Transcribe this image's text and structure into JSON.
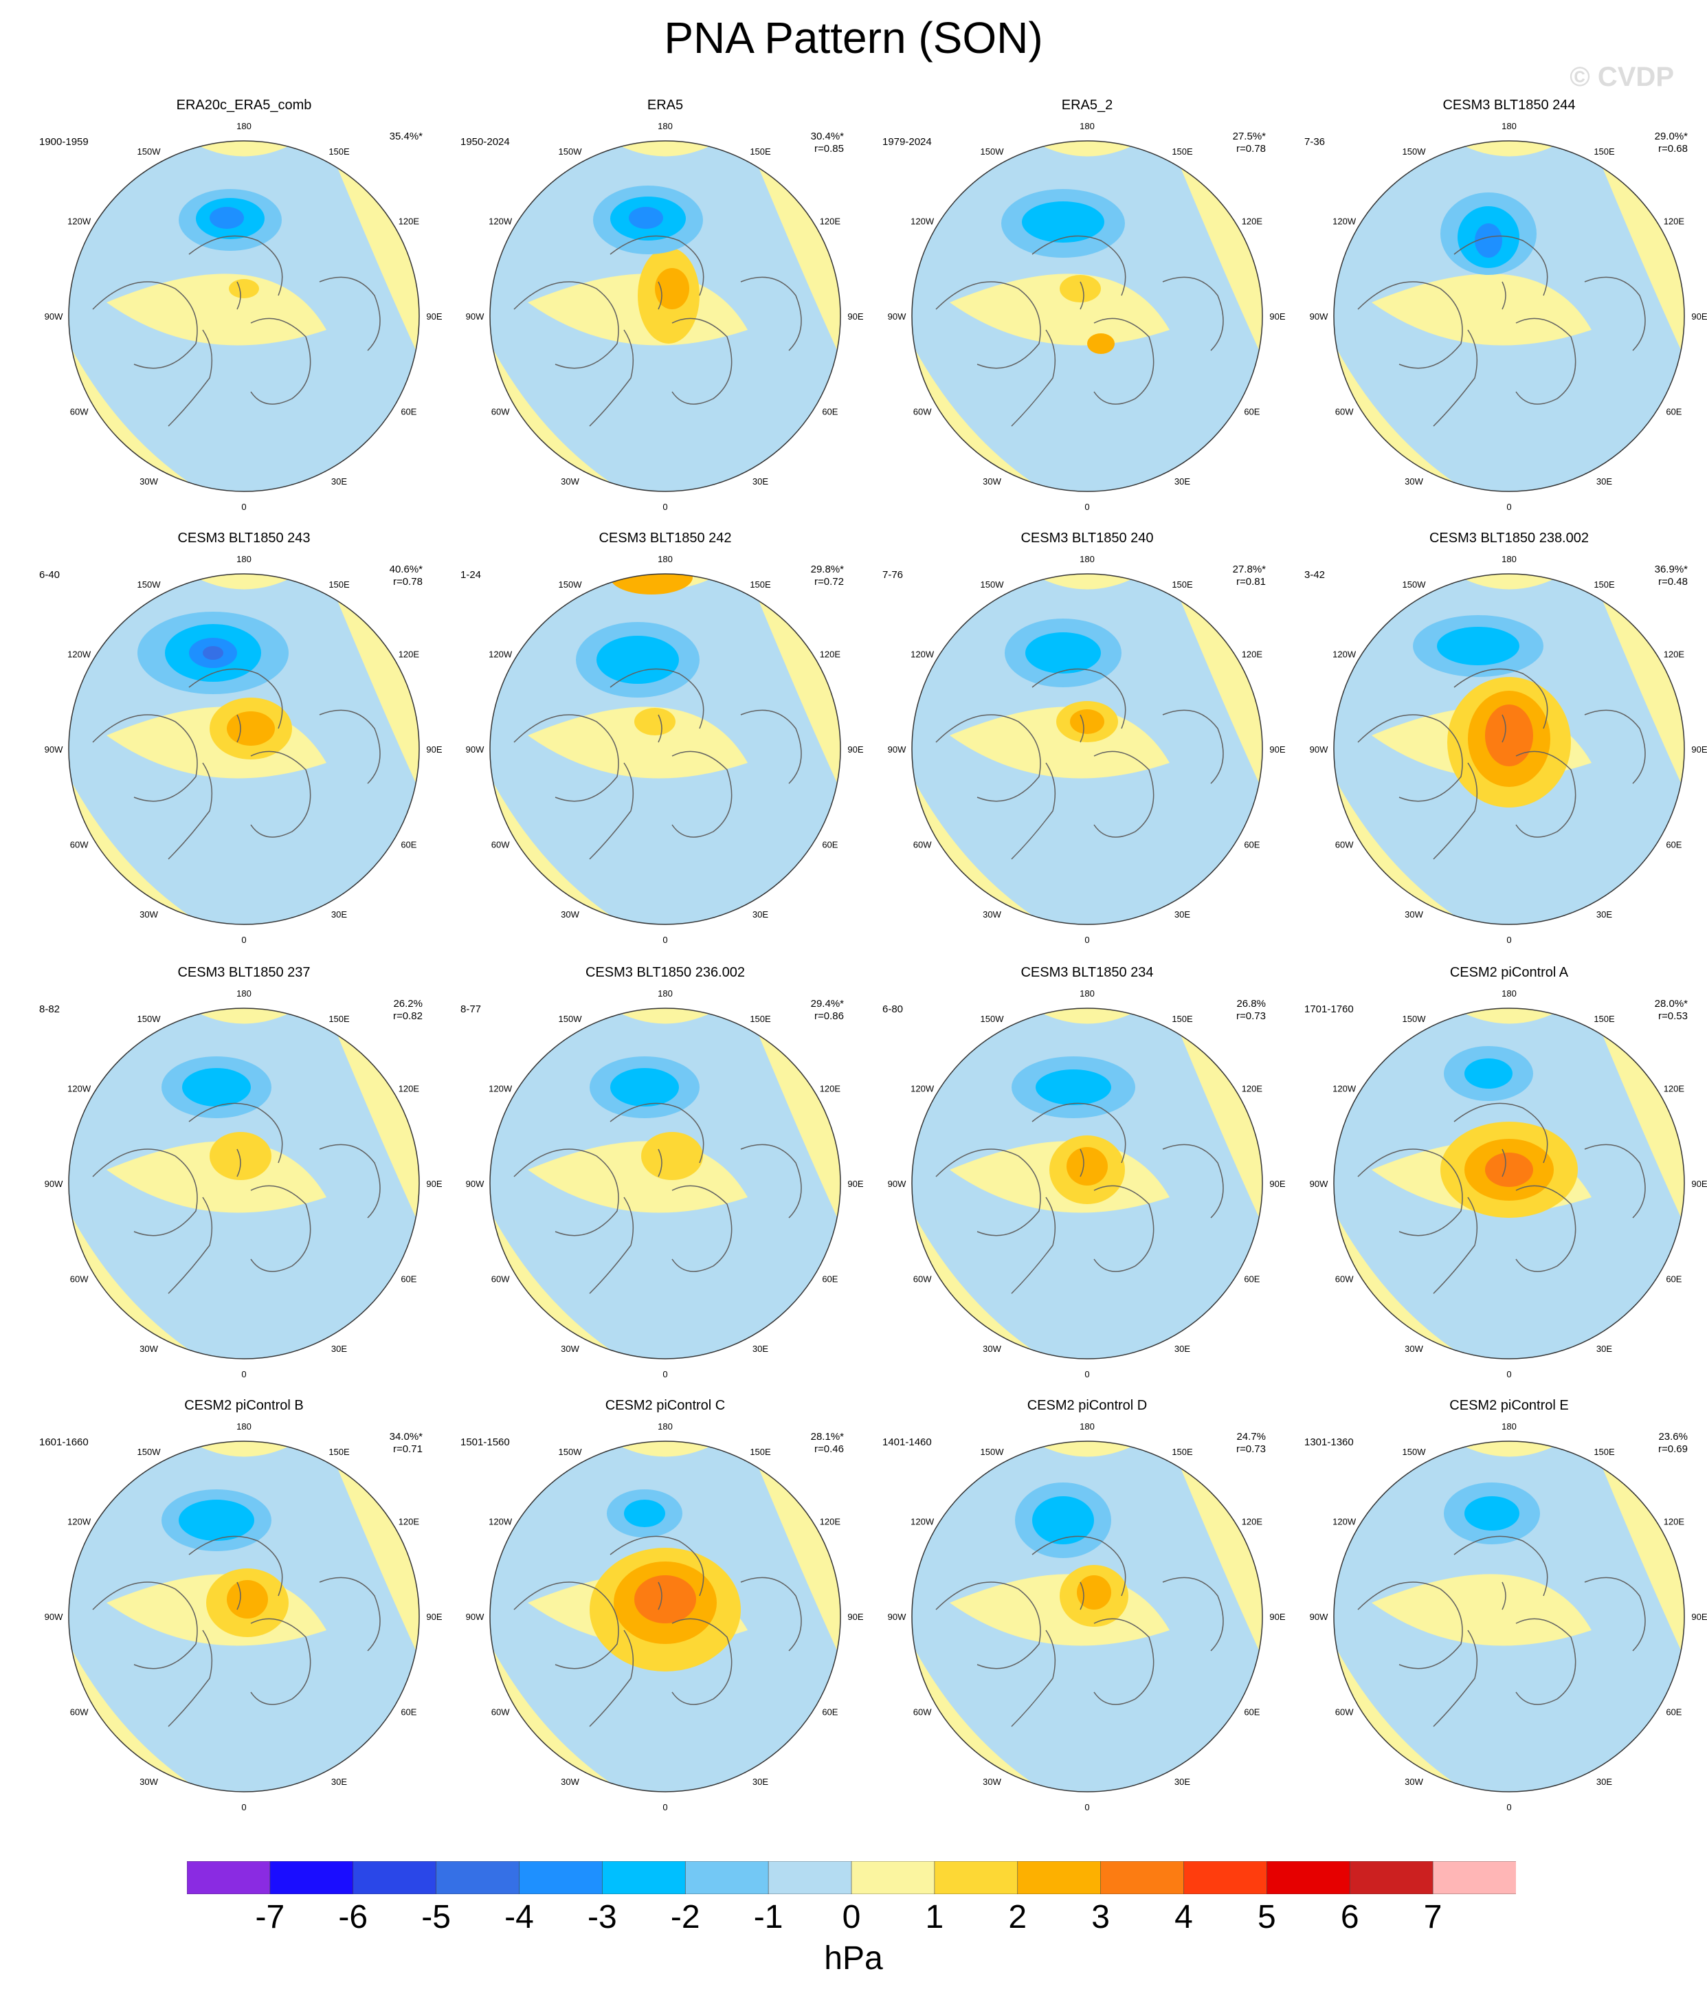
{
  "title": "PNA Pattern (SON)",
  "watermark": "© CVDP",
  "lon_labels": [
    "180",
    "150E",
    "120E",
    "90E",
    "60E",
    "30E",
    "0",
    "30W",
    "60W",
    "90W",
    "120W",
    "150W"
  ],
  "panels": [
    {
      "name": "ERA20c_ERA5_comb",
      "period": "1900-1959",
      "pct": "35.4%*",
      "r": ""
    },
    {
      "name": "ERA5",
      "period": "1950-2024",
      "pct": "30.4%*",
      "r": "r=0.85"
    },
    {
      "name": "ERA5_2",
      "period": "1979-2024",
      "pct": "27.5%*",
      "r": "r=0.78"
    },
    {
      "name": "CESM3 BLT1850 244",
      "period": "7-36",
      "pct": "29.0%*",
      "r": "r=0.68"
    },
    {
      "name": "CESM3 BLT1850 243",
      "period": "6-40",
      "pct": "40.6%*",
      "r": "r=0.78"
    },
    {
      "name": "CESM3 BLT1850 242",
      "period": "1-24",
      "pct": "29.8%*",
      "r": "r=0.72"
    },
    {
      "name": "CESM3 BLT1850 240",
      "period": "7-76",
      "pct": "27.8%*",
      "r": "r=0.81"
    },
    {
      "name": "CESM3 BLT1850 238.002",
      "period": "3-42",
      "pct": "36.9%*",
      "r": "r=0.48"
    },
    {
      "name": "CESM3 BLT1850 237",
      "period": "8-82",
      "pct": "26.2%",
      "r": "r=0.82"
    },
    {
      "name": "CESM3 BLT1850 236.002",
      "period": "8-77",
      "pct": "29.4%*",
      "r": "r=0.86"
    },
    {
      "name": "CESM3 BLT1850 234",
      "period": "6-80",
      "pct": "26.8%",
      "r": "r=0.73"
    },
    {
      "name": "CESM2 piControl A",
      "period": "1701-1760",
      "pct": "28.0%*",
      "r": "r=0.53"
    },
    {
      "name": "CESM2 piControl B",
      "period": "1601-1660",
      "pct": "34.0%*",
      "r": "r=0.71"
    },
    {
      "name": "CESM2 piControl C",
      "period": "1501-1560",
      "pct": "28.1%*",
      "r": "r=0.46"
    },
    {
      "name": "CESM2 piControl D",
      "period": "1401-1460",
      "pct": "24.7%",
      "r": "r=0.73"
    },
    {
      "name": "CESM2 piControl E",
      "period": "1301-1360",
      "pct": "23.6%",
      "r": "r=0.69"
    }
  ],
  "colorbar": {
    "colors": [
      "#8a2be2",
      "#1a0dff",
      "#2a47e8",
      "#3570e6",
      "#1e90ff",
      "#00bfff",
      "#73c8f5",
      "#b4dcf2",
      "#fbf5a0",
      "#fdd835",
      "#fdb000",
      "#fc7c12",
      "#ff3d0d",
      "#e60000",
      "#cc2020",
      "#ffb6b6"
    ],
    "labels": [
      "-7",
      "-6",
      "-5",
      "-4",
      "-3",
      "-2",
      "-1",
      "0",
      "1",
      "2",
      "3",
      "4",
      "5",
      "6",
      "7"
    ],
    "units": "hPa"
  }
}
